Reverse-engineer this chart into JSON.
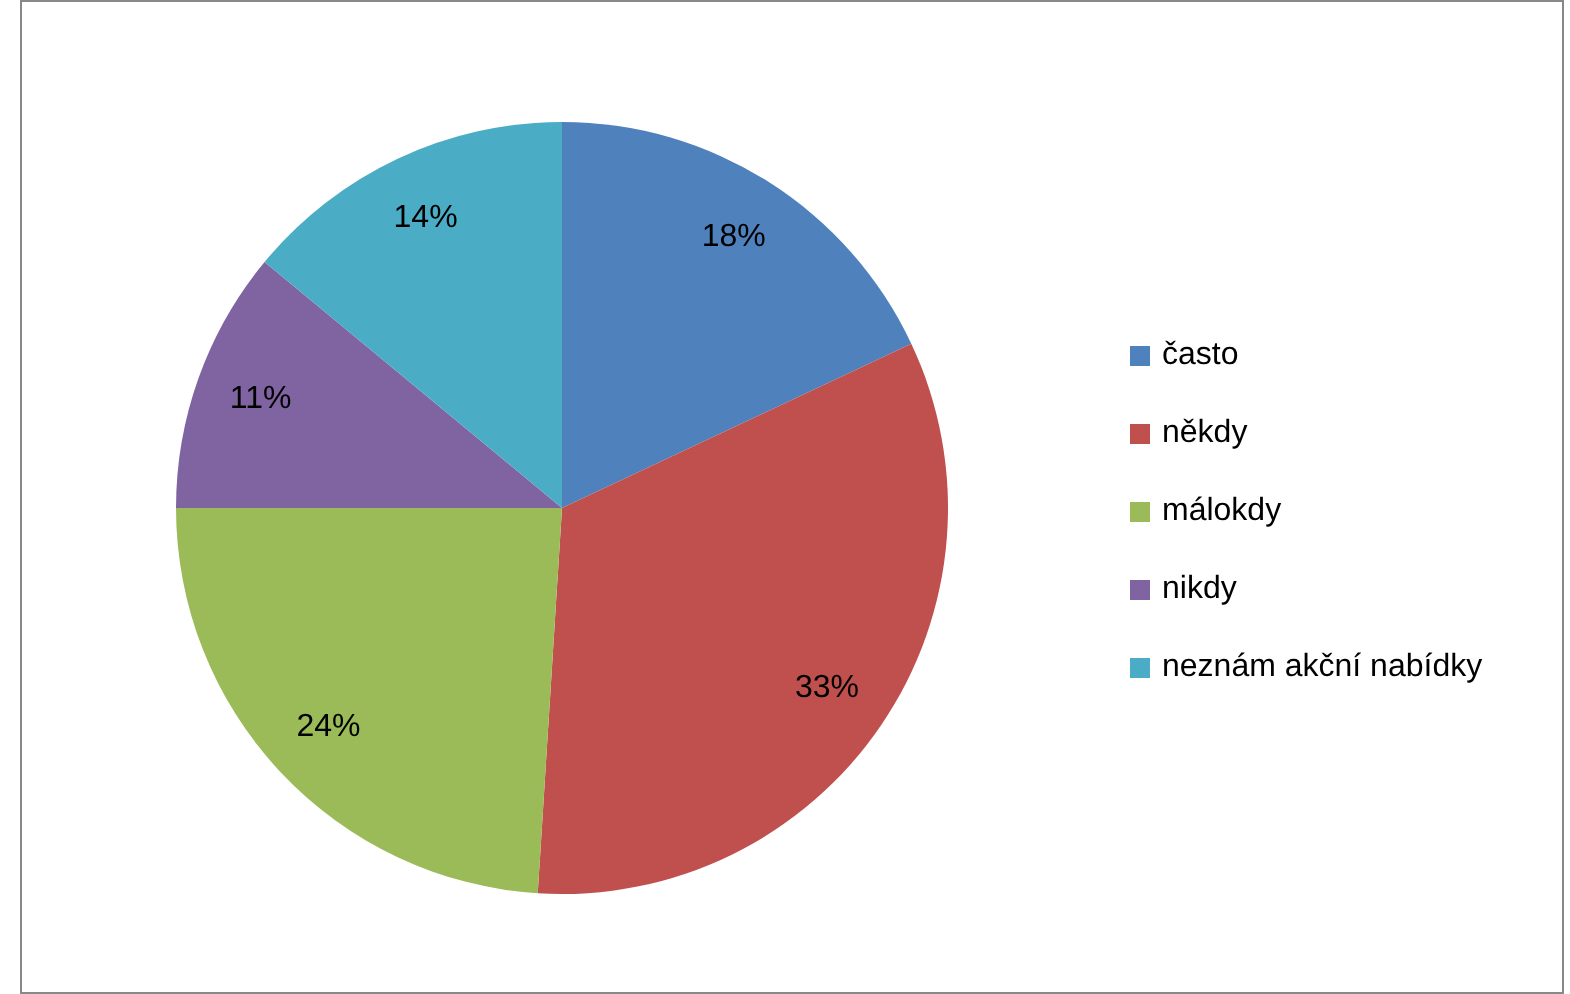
{
  "chart_data": {
    "type": "pie",
    "categories": [
      "často",
      "někdy",
      "málokdy",
      "nikdy",
      "neznám akční nabídky"
    ],
    "values": [
      18,
      33,
      24,
      11,
      14
    ],
    "colors": [
      "#4f81bd",
      "#c0504d",
      "#9bbb59",
      "#8064a2",
      "#4bacc6"
    ],
    "value_labels": [
      "18%",
      "33%",
      "24%",
      "11%",
      "14%"
    ],
    "legend": "right"
  }
}
